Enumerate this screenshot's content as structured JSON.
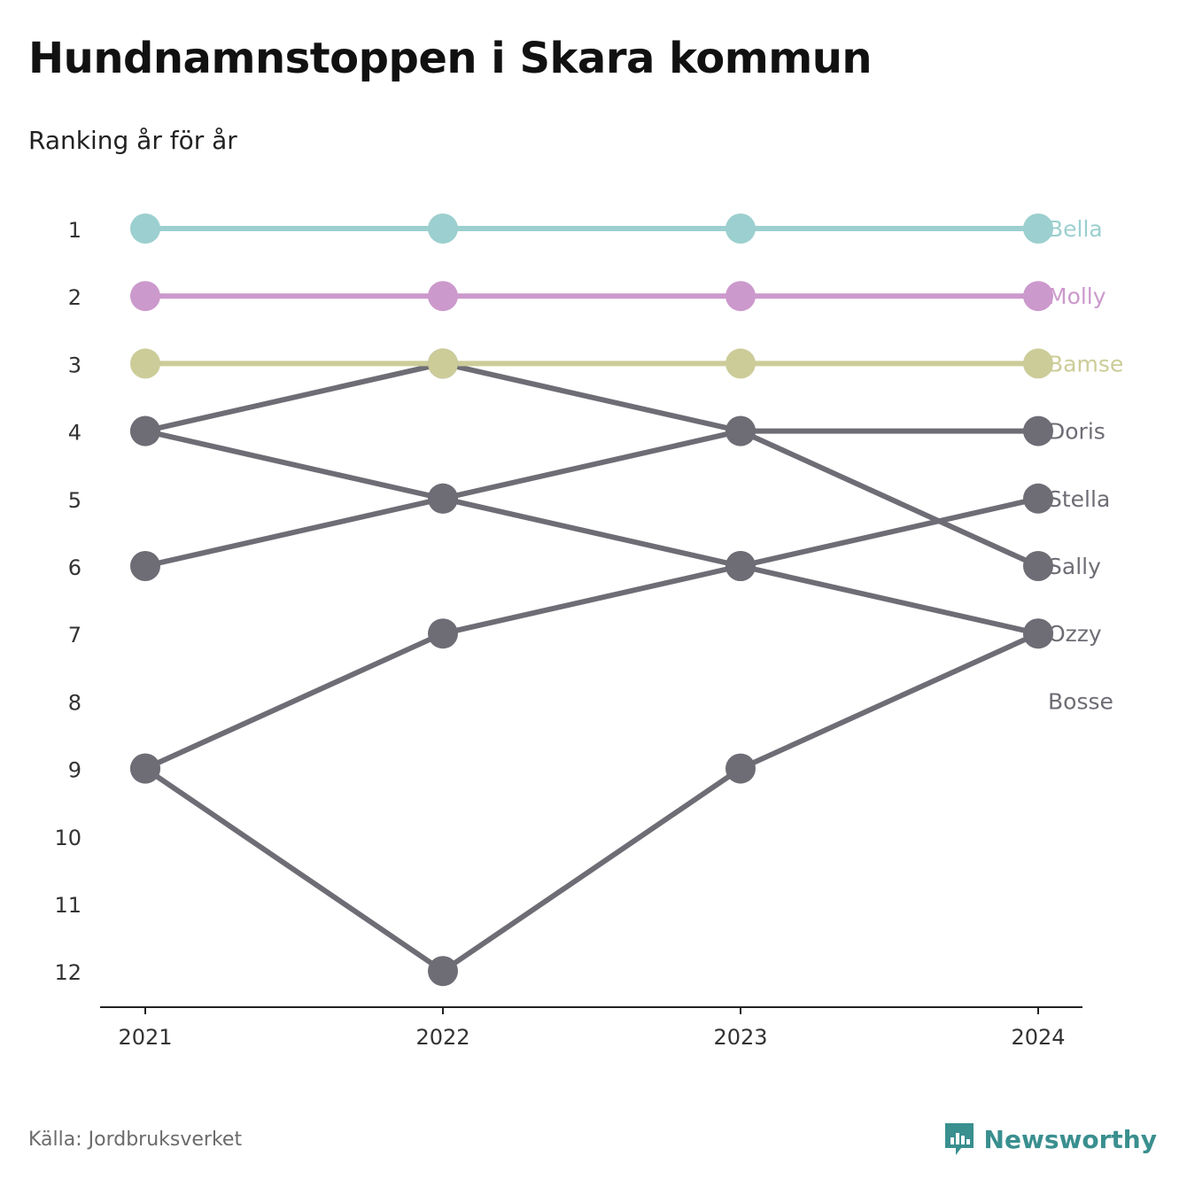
{
  "header": {
    "title": "Hundnamnstoppen i Skara kommun",
    "subtitle": "Ranking år för år"
  },
  "footer": {
    "source": "Källa: Jordbruksverket",
    "brand": "Newsworthy",
    "brand_icon": "newsworthy-logo-icon",
    "brand_color": "#3a8f8f"
  },
  "chart_data": {
    "type": "line",
    "subtype": "bump",
    "x": [
      "2021",
      "2022",
      "2023",
      "2024"
    ],
    "y_ticks": [
      "1",
      "2",
      "3",
      "4",
      "5",
      "6",
      "7",
      "8",
      "9",
      "10",
      "11",
      "12"
    ],
    "ylim": [
      1,
      12
    ],
    "y_inverted": true,
    "grid": false,
    "series": [
      {
        "name": "Bella",
        "color": "#9ccfcf",
        "values": [
          1,
          1,
          1,
          1
        ]
      },
      {
        "name": "Molly",
        "color": "#cc99cc",
        "values": [
          2,
          2,
          2,
          2
        ]
      },
      {
        "name": "Bamse",
        "color": "#cccc99",
        "values": [
          3,
          3,
          3,
          3
        ]
      },
      {
        "name": "Doris",
        "color": "#6e6d75",
        "values": [
          6,
          5,
          4,
          4
        ]
      },
      {
        "name": "Stella",
        "color": "#6e6d75",
        "values": [
          9,
          7,
          6,
          5
        ]
      },
      {
        "name": "Sally",
        "color": "#6e6d75",
        "values": [
          4,
          3,
          4,
          6
        ]
      },
      {
        "name": "Ozzy",
        "color": "#6e6d75",
        "values": [
          4,
          5,
          6,
          7
        ]
      },
      {
        "name": "Bosse",
        "color": "#6e6d75",
        "values": [
          9,
          12,
          9,
          7
        ]
      }
    ],
    "end_labels": [
      {
        "text": "Bella",
        "rank": 1,
        "color": "#9ccfcf"
      },
      {
        "text": "Molly",
        "rank": 2,
        "color": "#cc99cc"
      },
      {
        "text": "Bamse",
        "rank": 3,
        "color": "#cccc99"
      },
      {
        "text": "Doris",
        "rank": 4,
        "color": "#6e6d75"
      },
      {
        "text": "Stella",
        "rank": 5,
        "color": "#6e6d75"
      },
      {
        "text": "Sally",
        "rank": 6,
        "color": "#6e6d75"
      },
      {
        "text": "Ozzy",
        "rank": 7,
        "color": "#6e6d75"
      },
      {
        "text": "Bosse",
        "rank": 8,
        "color": "#6e6d75"
      }
    ]
  }
}
